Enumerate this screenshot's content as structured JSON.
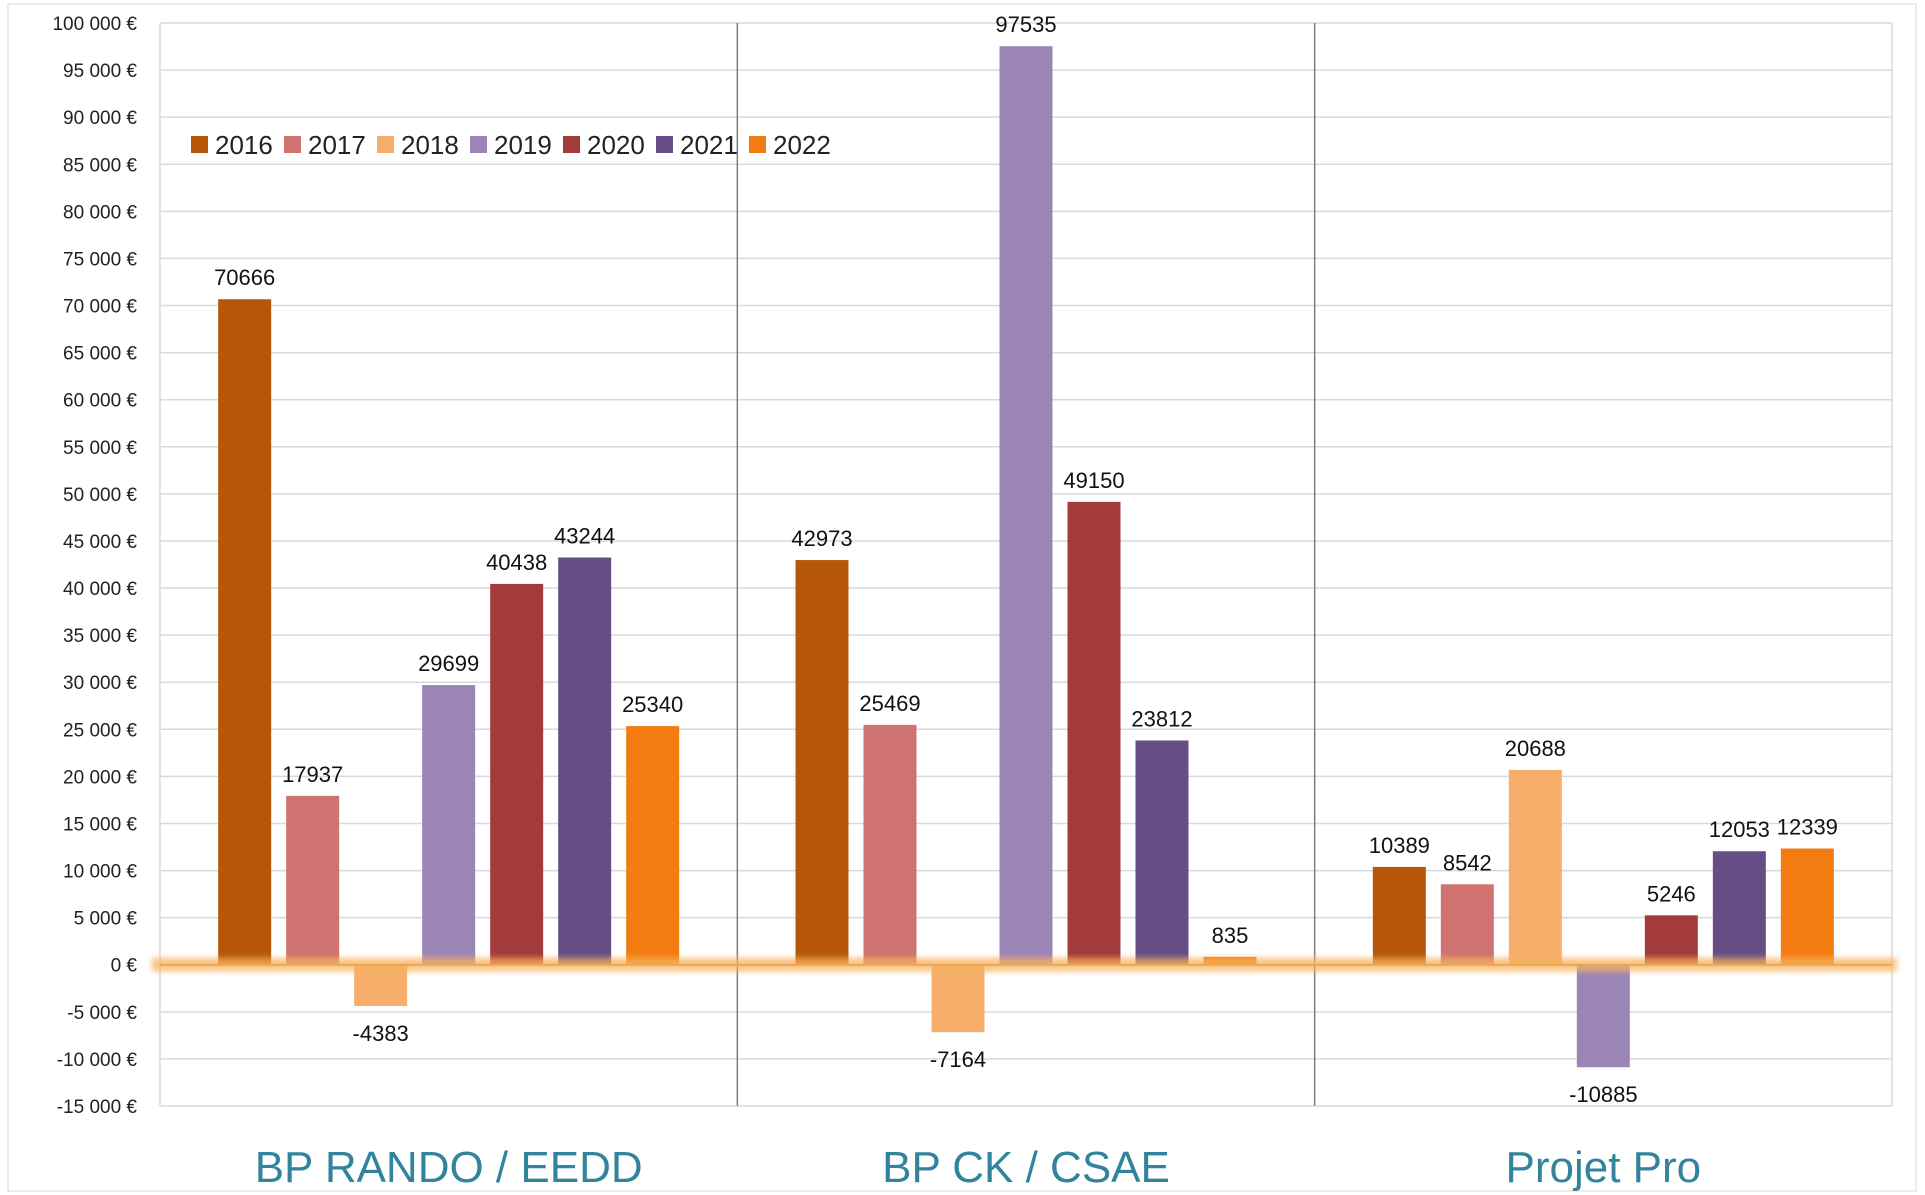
{
  "chart_data": {
    "type": "bar",
    "categories": [
      "BP RANDO / EEDD",
      "BP CK / CSAE",
      "Projet Pro"
    ],
    "series": [
      {
        "name": "2016",
        "color": "#b65708",
        "values": [
          70666,
          42973,
          10389
        ]
      },
      {
        "name": "2017",
        "color": "#cf7370",
        "values": [
          17937,
          25469,
          8542
        ]
      },
      {
        "name": "2018",
        "color": "#f7ae6b",
        "values": [
          -4383,
          -7164,
          20688
        ]
      },
      {
        "name": "2019",
        "color": "#9b84b6",
        "values": [
          29699,
          97535,
          -10885
        ]
      },
      {
        "name": "2020",
        "color": "#a23b39",
        "values": [
          40438,
          49150,
          5246
        ]
      },
      {
        "name": "2021",
        "color": "#664d86",
        "values": [
          43244,
          23812,
          12053
        ]
      },
      {
        "name": "2022",
        "color": "#f27c10",
        "values": [
          25340,
          835,
          12339
        ]
      }
    ],
    "ylim": [
      -15000,
      100000
    ],
    "ytick_step": 5000,
    "ytick_labels": [
      "-15 000 €",
      "-10 000 €",
      "-5 000 €",
      "0 €",
      "5 000 €",
      "10 000 €",
      "15 000 €",
      "20 000 €",
      "25 000 €",
      "30 000 €",
      "35 000 €",
      "40 000 €",
      "45 000 €",
      "50 000 €",
      "55 000 €",
      "60 000 €",
      "65 000 €",
      "70 000 €",
      "75 000 €",
      "80 000 €",
      "85 000 €",
      "90 000 €",
      "95 000 €",
      "100 000 €"
    ],
    "grid": true,
    "legend_position": "top-left",
    "zero_line_highlight_color": "#f5b460",
    "category_label_color": "#31849b",
    "grid_color": "#d9d9d9",
    "divider_color": "#7f7f7f"
  }
}
